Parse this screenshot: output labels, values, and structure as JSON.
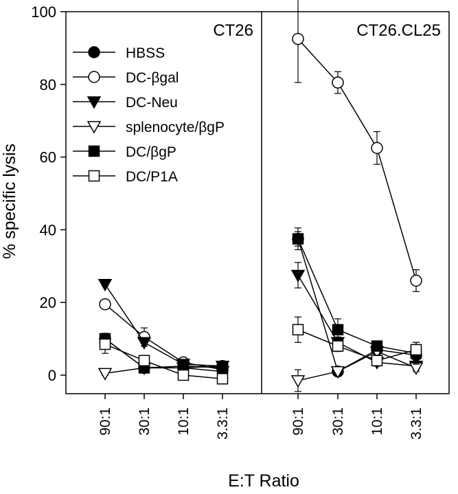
{
  "chart_data": {
    "type": "line",
    "ylabel": "% specific lysis",
    "xlabel": "E:T Ratio",
    "ylim": [
      -5,
      100
    ],
    "yticks": [
      0,
      20,
      40,
      60,
      80,
      100
    ],
    "categories": [
      "90:1",
      "30:1",
      "10:1",
      "3.3:1"
    ],
    "legend": {
      "placement": "top-left of left panel",
      "entries": [
        {
          "name": "HBSS",
          "marker": "circle",
          "filled": true
        },
        {
          "name": "DC-βgal",
          "marker": "circle",
          "filled": false
        },
        {
          "name": "DC-Neu",
          "marker": "triangle-down",
          "filled": true
        },
        {
          "name": "splenocyte/βgP",
          "marker": "triangle-down",
          "filled": false
        },
        {
          "name": "DC/βgP",
          "marker": "square",
          "filled": true
        },
        {
          "name": "DC/P1A",
          "marker": "square",
          "filled": false
        }
      ]
    },
    "panels": [
      {
        "title": "CT26",
        "series": [
          {
            "name": "HBSS",
            "values": [
              10,
              2,
              2,
              2.5
            ],
            "errors": [
              1.5,
              1,
              1,
              1
            ]
          },
          {
            "name": "DC-βgal",
            "values": [
              19.5,
              10.5,
              3.5,
              1.5
            ],
            "errors": [
              1,
              2.5,
              1,
              1
            ]
          },
          {
            "name": "DC-Neu",
            "values": [
              25,
              9,
              3,
              2.5
            ],
            "errors": [
              0.5,
              1,
              1,
              1
            ]
          },
          {
            "name": "splenocyte/βgP",
            "values": [
              0.5,
              2,
              2,
              1
            ],
            "errors": [
              0.5,
              0.5,
              0.5,
              0.5
            ]
          },
          {
            "name": "DC/βgP",
            "values": [
              10,
              2,
              2.5,
              2
            ],
            "errors": [
              1,
              0.5,
              0.5,
              0.5
            ]
          },
          {
            "name": "DC/P1A",
            "values": [
              8.5,
              4,
              0,
              -1
            ],
            "errors": [
              2.5,
              1,
              1,
              1
            ]
          }
        ]
      },
      {
        "title": "CT26.CL25",
        "series": [
          {
            "name": "HBSS",
            "values": [
              37.5,
              1,
              7,
              5.5
            ],
            "errors": [
              2,
              0.5,
              1,
              1
            ]
          },
          {
            "name": "DC-βgal",
            "values": [
              92.5,
              80.5,
              62.5,
              26
            ],
            "errors": [
              12,
              3,
              4.5,
              3
            ]
          },
          {
            "name": "DC-Neu",
            "values": [
              27.5,
              9,
              3.5,
              2.5
            ],
            "errors": [
              3.5,
              1.5,
              1,
              1
            ]
          },
          {
            "name": "splenocyte/βgP",
            "values": [
              -1.5,
              1,
              6.5,
              2
            ],
            "errors": [
              3,
              0.5,
              1,
              1
            ]
          },
          {
            "name": "DC/βgP",
            "values": [
              37.5,
              12.5,
              8,
              6
            ],
            "errors": [
              3,
              3,
              1,
              3
            ]
          },
          {
            "name": "DC/P1A",
            "values": [
              12.5,
              8,
              4,
              7
            ],
            "errors": [
              3.5,
              1.5,
              1.5,
              2
            ]
          }
        ]
      }
    ]
  }
}
